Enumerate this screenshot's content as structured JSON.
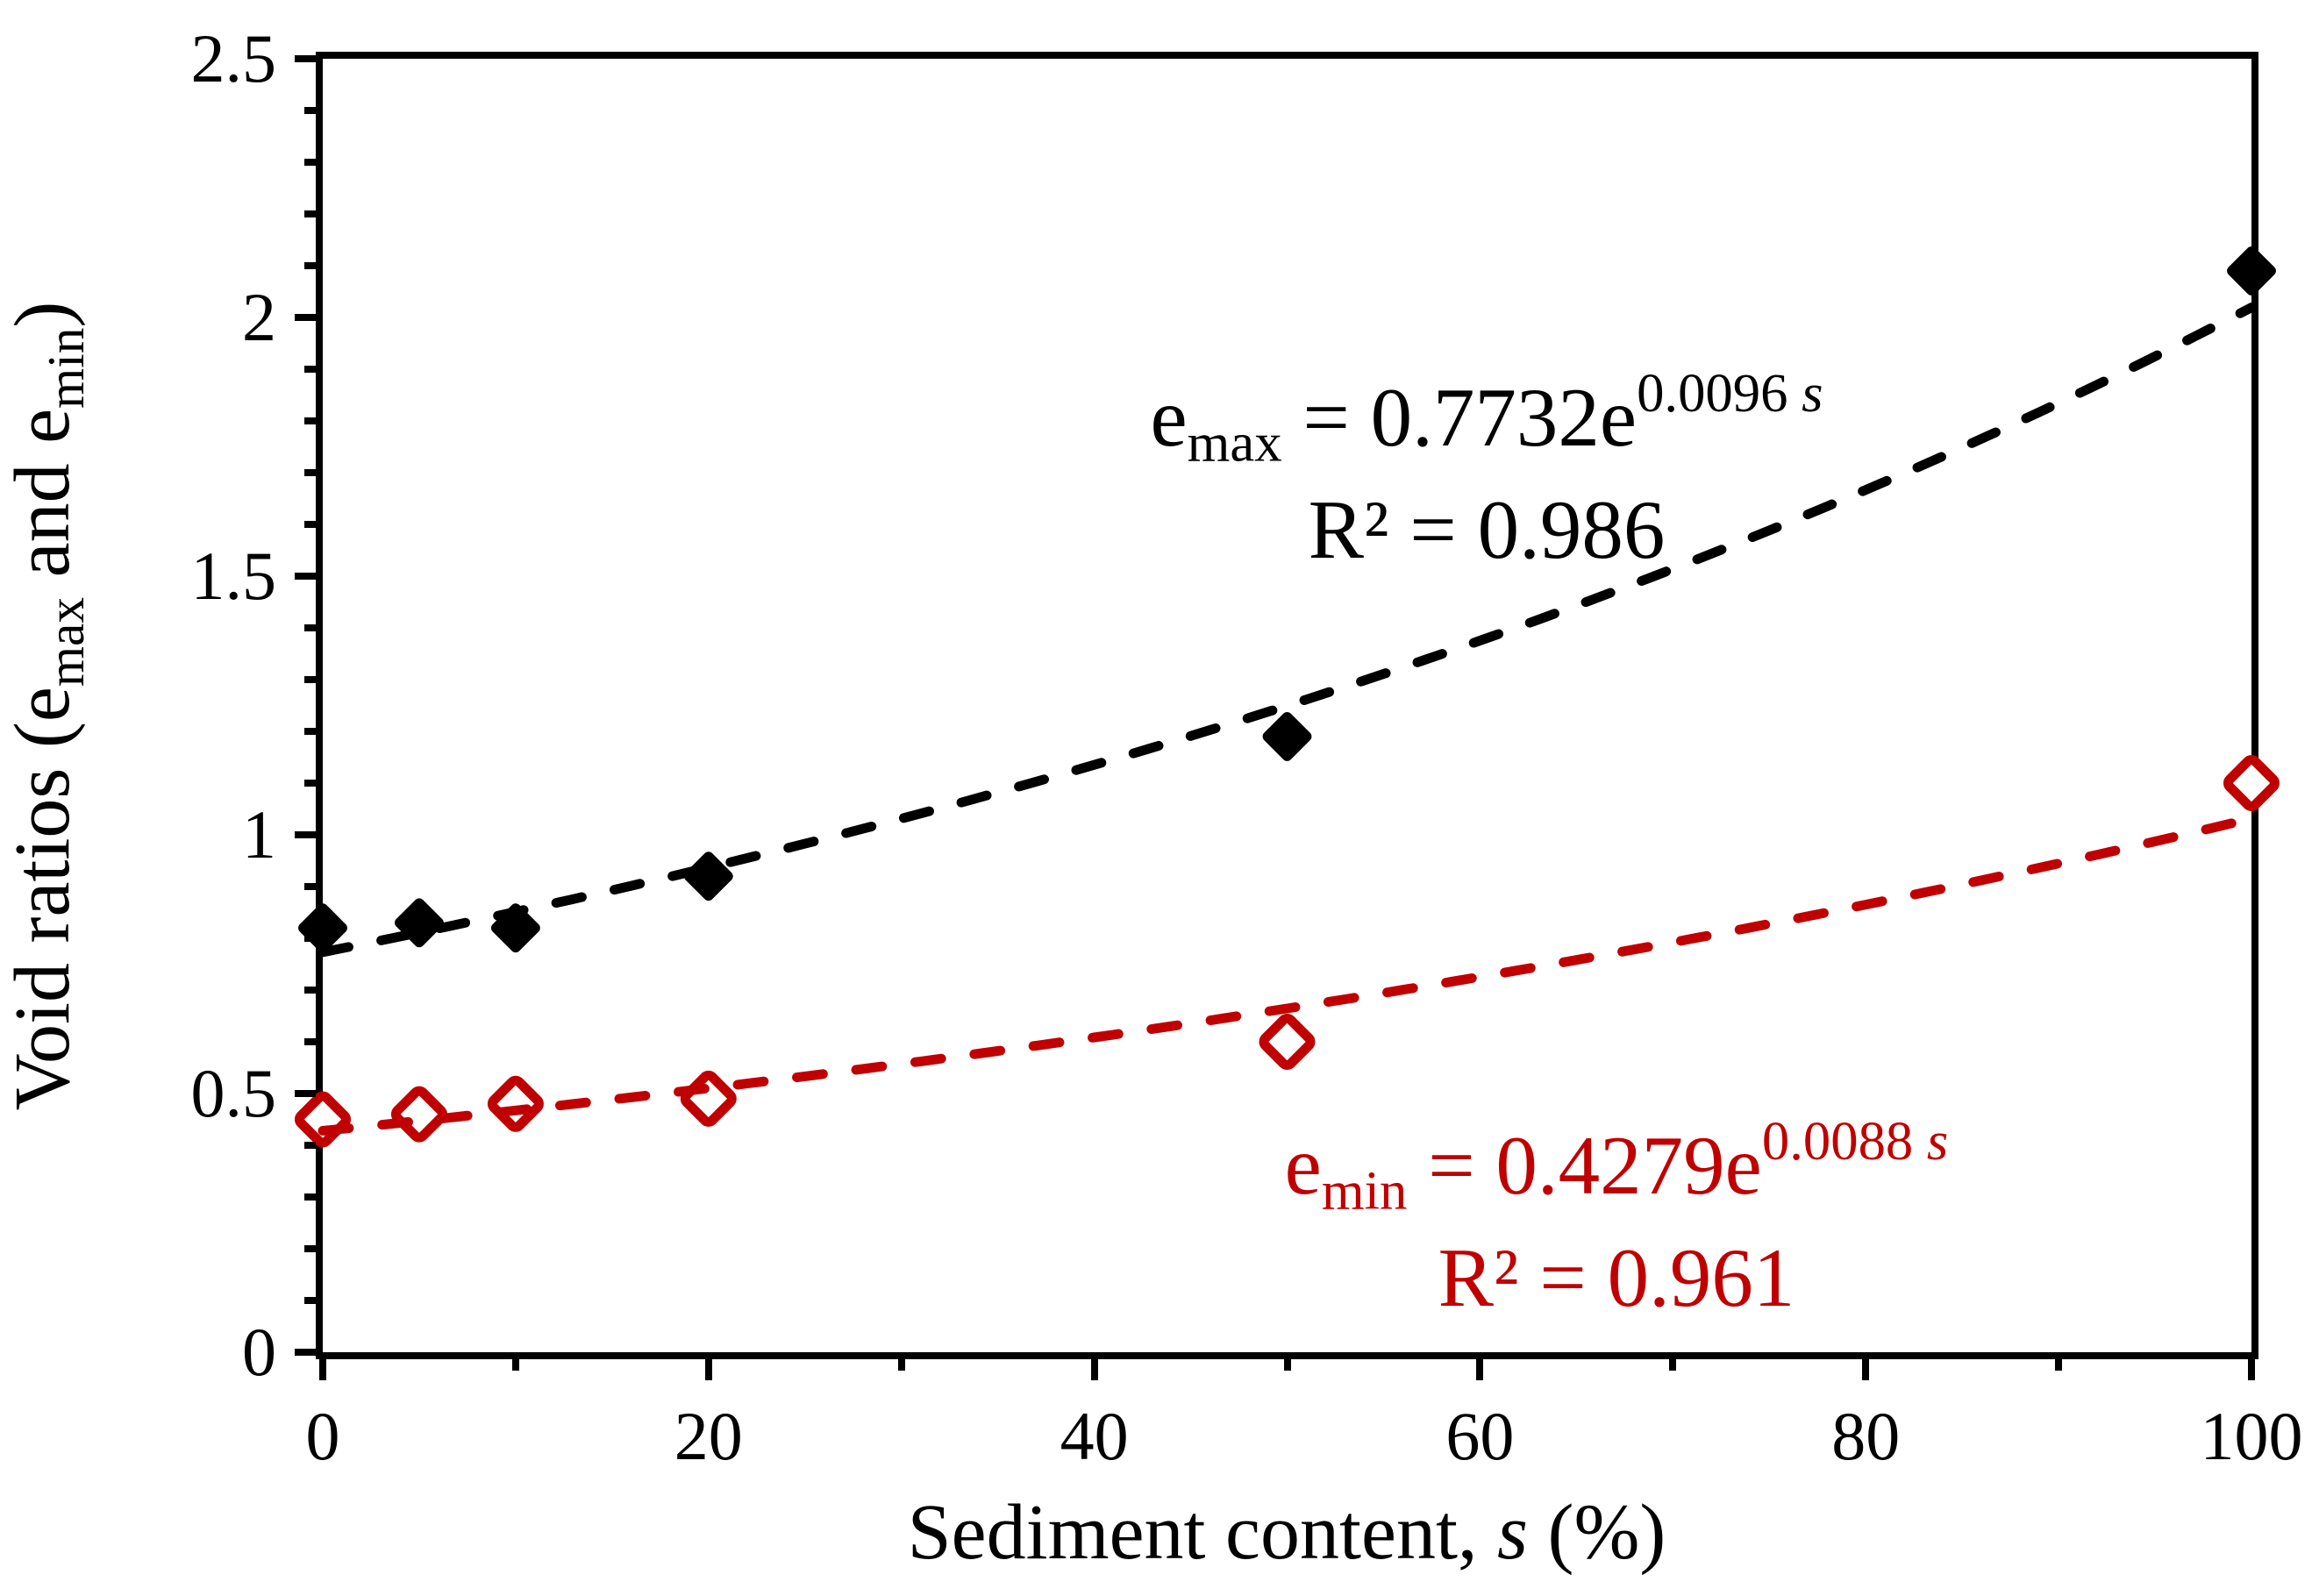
{
  "chart_data": {
    "type": "scatter",
    "title": "",
    "xlabel": {
      "pre": "Sediment content, ",
      "var": "s",
      "post": " (%)"
    },
    "ylabel": {
      "pre": "Void ratios (e",
      "sub1": "max",
      "mid": " and e",
      "sub2": "min",
      "post": ")"
    },
    "xlim": [
      0,
      100
    ],
    "ylim": [
      0,
      2.5
    ],
    "x_ticks": [
      0,
      20,
      40,
      60,
      80,
      100
    ],
    "x_tick_labels": [
      "0",
      "20",
      "40",
      "60",
      "80",
      "100"
    ],
    "x_minor_step": 10,
    "y_ticks": [
      0,
      0.5,
      1,
      1.5,
      2,
      2.5
    ],
    "y_tick_labels": [
      "0",
      "0.5",
      "1",
      "1.5",
      "2",
      "2.5"
    ],
    "y_minor_step": 0.1,
    "grid": false,
    "legend": "none",
    "frame": "full-box",
    "series": [
      {
        "name": "e_max",
        "color": "#000000",
        "marker": "diamond-filled",
        "x": [
          0,
          5,
          10,
          20,
          50,
          100
        ],
        "y": [
          0.82,
          0.83,
          0.82,
          0.92,
          1.19,
          2.09
        ],
        "trend": {
          "type": "exponential",
          "a": 0.7732,
          "b": 0.0096,
          "r2": 0.986,
          "style": "dashed"
        },
        "annotation": {
          "sym": "e",
          "sub": "max",
          "eq": " = 0.7732e",
          "sup": "0.0096 ",
          "supvar": "s",
          "r2": "R² = 0.986"
        }
      },
      {
        "name": "e_min",
        "color": "#C00000",
        "marker": "diamond-open",
        "x": [
          0,
          5,
          10,
          20,
          50,
          100
        ],
        "y": [
          0.45,
          0.46,
          0.48,
          0.49,
          0.6,
          1.1
        ],
        "trend": {
          "type": "exponential",
          "a": 0.4279,
          "b": 0.0088,
          "r2": 0.961,
          "style": "dashed"
        },
        "annotation": {
          "sym": "e",
          "sub": "min",
          "eq": " = 0.4279e",
          "sup": "0.0088 ",
          "supvar": "s",
          "r2": "R² = 0.961"
        }
      }
    ]
  }
}
